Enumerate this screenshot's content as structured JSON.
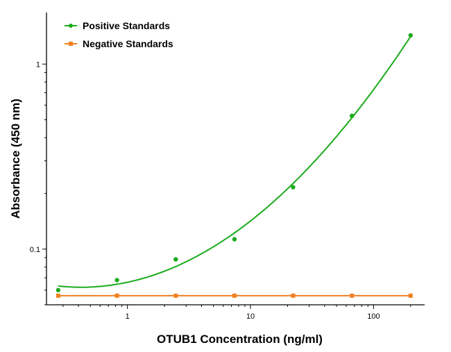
{
  "chart_data": {
    "type": "scatter",
    "xlabel": "OTUB1 Concentration (ng/ml)",
    "ylabel": "Absorbance (450 nm)",
    "x_scale": "log",
    "y_scale": "log",
    "xlim": [
      0.22,
      260
    ],
    "ylim": [
      0.05,
      1.9
    ],
    "x_ticks": [
      {
        "value": 1,
        "label": "1"
      },
      {
        "value": 10,
        "label": "10"
      },
      {
        "value": 100,
        "label": "100"
      }
    ],
    "y_ticks": [
      {
        "value": 0.1,
        "label": "0.1"
      },
      {
        "value": 1,
        "label": "1"
      }
    ],
    "legend_position": "top-left",
    "grid": false,
    "series": [
      {
        "name": "Positive Standards",
        "color": "#1aab1a",
        "marker": "circle",
        "line": "fitted-curve",
        "x": [
          0.274,
          0.823,
          2.47,
          7.41,
          22.2,
          66.7,
          200
        ],
        "y": [
          0.06,
          0.068,
          0.088,
          0.113,
          0.216,
          0.525,
          1.43
        ]
      },
      {
        "name": "Negative Standards",
        "color": "#f08020",
        "marker": "square",
        "line": "straight",
        "x": [
          0.274,
          0.823,
          2.47,
          7.41,
          22.2,
          66.7,
          200
        ],
        "y": [
          0.056,
          0.056,
          0.056,
          0.056,
          0.056,
          0.056,
          0.056
        ]
      }
    ]
  }
}
